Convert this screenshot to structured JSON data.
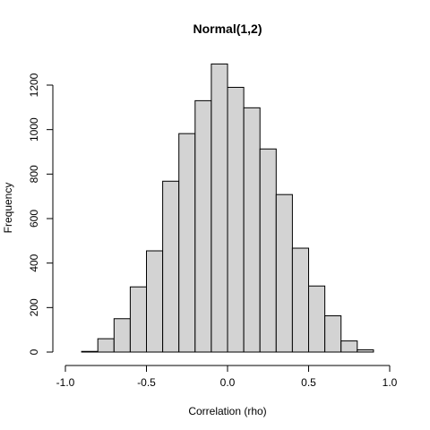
{
  "chart_data": {
    "type": "bar",
    "title": "Normal(1,2)",
    "xlabel": "Correlation (rho)",
    "ylabel": "Frequency",
    "xlim": [
      -1.0,
      1.0
    ],
    "ylim": [
      0,
      1300
    ],
    "x_ticks": [
      "-1.0",
      "-0.5",
      "0.0",
      "0.5",
      "1.0"
    ],
    "y_ticks": [
      "0",
      "200",
      "400",
      "600",
      "800",
      "1000",
      "1200"
    ],
    "bin_width": 0.1,
    "bins": [
      {
        "start": -0.9,
        "end": -0.8,
        "count": 3
      },
      {
        "start": -0.8,
        "end": -0.7,
        "count": 60
      },
      {
        "start": -0.7,
        "end": -0.6,
        "count": 150
      },
      {
        "start": -0.6,
        "end": -0.5,
        "count": 293
      },
      {
        "start": -0.5,
        "end": -0.4,
        "count": 455
      },
      {
        "start": -0.4,
        "end": -0.3,
        "count": 768
      },
      {
        "start": -0.3,
        "end": -0.2,
        "count": 982
      },
      {
        "start": -0.2,
        "end": -0.1,
        "count": 1130
      },
      {
        "start": -0.1,
        "end": 0.0,
        "count": 1295
      },
      {
        "start": 0.0,
        "end": 0.1,
        "count": 1190
      },
      {
        "start": 0.1,
        "end": 0.2,
        "count": 1098
      },
      {
        "start": 0.2,
        "end": 0.3,
        "count": 913
      },
      {
        "start": 0.3,
        "end": 0.4,
        "count": 708
      },
      {
        "start": 0.4,
        "end": 0.5,
        "count": 467
      },
      {
        "start": 0.5,
        "end": 0.6,
        "count": 297
      },
      {
        "start": 0.6,
        "end": 0.7,
        "count": 163
      },
      {
        "start": 0.7,
        "end": 0.8,
        "count": 50
      },
      {
        "start": 0.8,
        "end": 0.9,
        "count": 10
      }
    ],
    "bar_fill": "#d3d3d3",
    "bar_stroke": "#000000",
    "grid": false,
    "legend": "none"
  }
}
